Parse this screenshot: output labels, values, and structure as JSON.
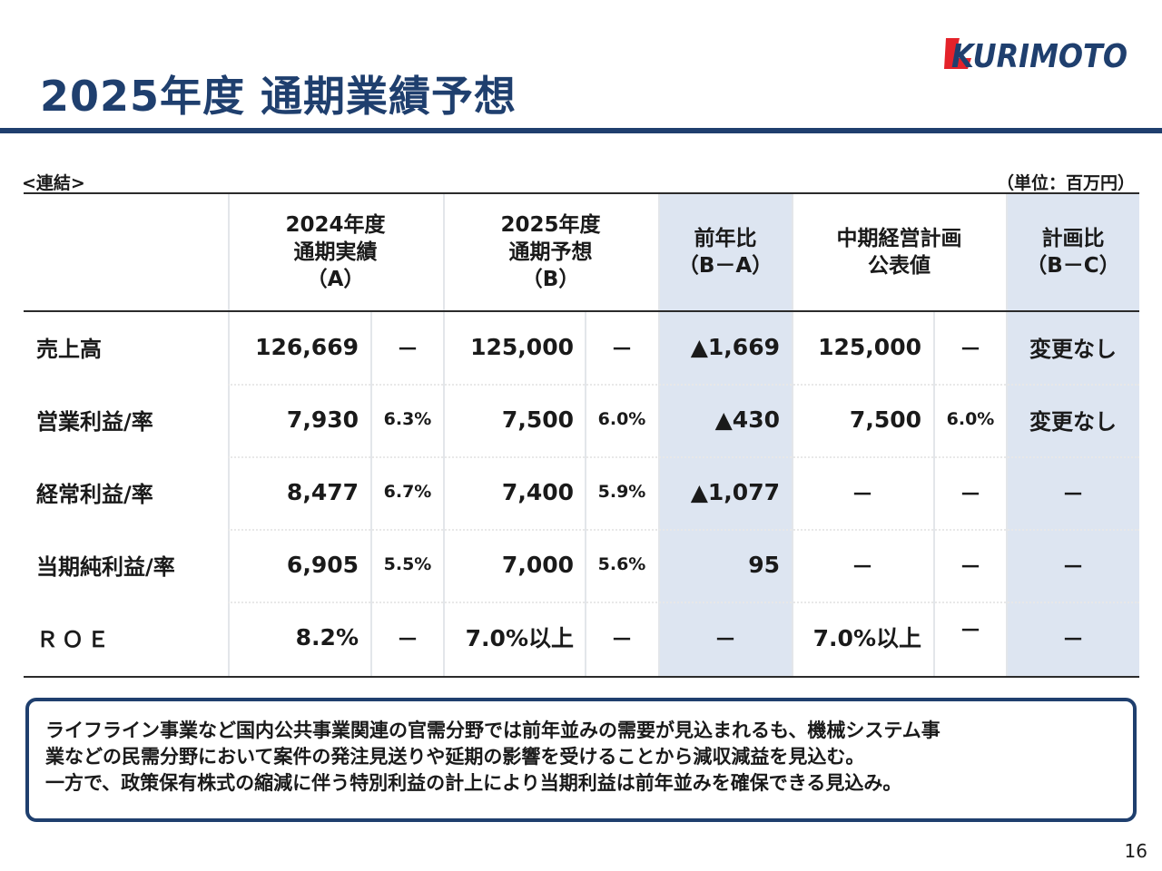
{
  "title": "2025年度 通期業績予想",
  "logo": {
    "text": "KURIMOTO",
    "color": "#1f3f6e",
    "accent": "#e4222a"
  },
  "labels": {
    "left": "<連結>",
    "right": "（単位：百万円）"
  },
  "headers": {
    "a": [
      "2024年度",
      "通期実績",
      "（A）"
    ],
    "b": [
      "2025年度",
      "通期予想",
      "（B）"
    ],
    "diff": [
      "前年比",
      "（B－A）"
    ],
    "plan": [
      "中期経営計画",
      "公表値"
    ],
    "plan_diff": [
      "計画比",
      "（B－C）"
    ]
  },
  "rows": [
    {
      "label": "売上高",
      "a": "126,669",
      "a_pct": "－",
      "b": "125,000",
      "b_pct": "－",
      "diff": "▲1,669",
      "c": "125,000",
      "c_pct": "－",
      "plan_diff": "変更なし"
    },
    {
      "label": "営業利益/率",
      "a": "7,930",
      "a_pct": "6.3%",
      "b": "7,500",
      "b_pct": "6.0%",
      "diff": "▲430",
      "c": "7,500",
      "c_pct": "6.0%",
      "plan_diff": "変更なし"
    },
    {
      "label": "経常利益/率",
      "a": "8,477",
      "a_pct": "6.7%",
      "b": "7,400",
      "b_pct": "5.9%",
      "diff": "▲1,077",
      "c": "－",
      "c_pct": "－",
      "plan_diff": "－"
    },
    {
      "label": "当期純利益/率",
      "a": "6,905",
      "a_pct": "5.5%",
      "b": "7,000",
      "b_pct": "5.6%",
      "diff": "95",
      "c": "－",
      "c_pct": "－",
      "plan_diff": "－"
    },
    {
      "label": "ＲＯＥ",
      "a": "8.2%",
      "a_pct": "－",
      "b": "7.0%以上",
      "b_pct": "－",
      "diff": "－",
      "c": "7.0%以上",
      "c_pct": "－",
      "plan_diff": "－"
    }
  ],
  "note": [
    "ライフライン事業など国内公共事業関連の官需分野では前年並みの需要が見込まれるも、機械システム事",
    "業などの民需分野において案件の発注見送りや延期の影響を受けることから減収減益を見込む。",
    "一方で、政策保有株式の縮減に伴う特別利益の計上により当期利益は前年並みを確保できる見込み。"
  ],
  "page_number": "16",
  "colors": {
    "navy": "#1f3f6e",
    "highlight": "#dde5f1",
    "red": "#e4222a"
  }
}
